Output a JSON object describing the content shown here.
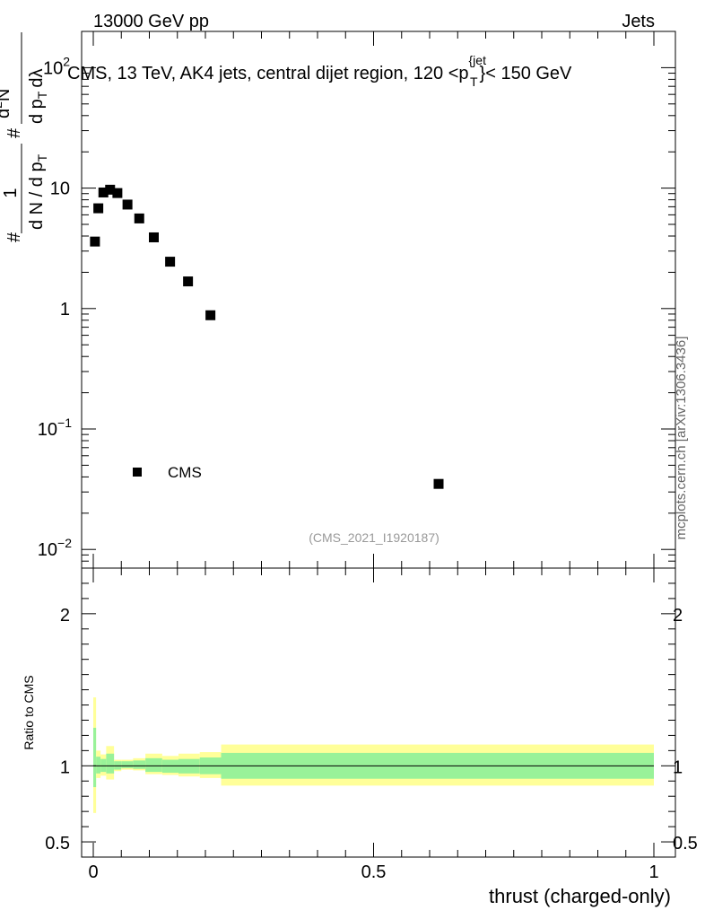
{
  "header": {
    "left": "13000 GeV pp",
    "right": "Jets"
  },
  "side_label": "mcplots.cern.ch [arXiv:1306.3436]",
  "chart_data": [
    {
      "type": "scatter",
      "title": "CMS, 13 TeV, AK4 jets, central dijet region, 120 <p",
      "title_sup": "{jet",
      "title_sub": "T",
      "title_tail": "}< 150 GeV",
      "yscale": "log",
      "ylim": [
        0.007,
        200
      ],
      "xlim": [
        -0.02,
        1.02
      ],
      "ylabel_parts": {
        "lead": "#",
        "frac_num": "1",
        "frac_den": "d N / d p",
        "den_sub": "T",
        "hash2": "#",
        "frac2_num": "d",
        "frac2_num_sup": "2",
        "frac2_num_tail": "N",
        "frac2_den": "d p",
        "frac2_den_sub": "T",
        "frac2_den_tail": "dλ"
      },
      "yticks": [
        {
          "value": 100,
          "base": "10",
          "exp": "2"
        },
        {
          "value": 10,
          "base": "10",
          "exp": ""
        },
        {
          "value": 1,
          "base": "1",
          "exp": ""
        },
        {
          "value": 0.1,
          "base": "10",
          "exp": "−1"
        },
        {
          "value": 0.01,
          "base": "10",
          "exp": "−2"
        }
      ],
      "series": [
        {
          "name": "CMS",
          "x": [
            0.003,
            0.009,
            0.018,
            0.03,
            0.043,
            0.061,
            0.082,
            0.108,
            0.137,
            0.169,
            0.209,
            0.616
          ],
          "y": [
            3.6,
            6.8,
            9.2,
            9.7,
            9.1,
            7.3,
            5.6,
            3.9,
            2.45,
            1.68,
            0.88,
            0.035
          ]
        }
      ],
      "legend": {
        "label": "CMS",
        "placement": "bottom-left"
      },
      "watermark": "(CMS_2021_I1920187)"
    },
    {
      "type": "area",
      "ylabel": "Ratio to CMS",
      "xlabel": "thrust (charged-only)",
      "ylim": [
        0.4,
        2.3
      ],
      "xlim": [
        -0.02,
        1.02
      ],
      "xticks": [
        {
          "value": 0,
          "label": "0"
        },
        {
          "value": 0.5,
          "label": "0.5"
        },
        {
          "value": 1,
          "label": "1"
        }
      ],
      "yticks": [
        {
          "value": 0.5,
          "label": "0.5"
        },
        {
          "value": 1,
          "label": "1"
        },
        {
          "value": 2,
          "label": "2"
        }
      ],
      "bins": [
        0,
        0.005,
        0.013,
        0.023,
        0.037,
        0.05,
        0.071,
        0.093,
        0.123,
        0.152,
        0.19,
        0.228,
        1.0
      ],
      "band_inner_low": [
        0.86,
        0.95,
        0.96,
        0.95,
        0.975,
        0.985,
        0.98,
        0.96,
        0.955,
        0.95,
        0.945,
        0.915
      ],
      "band_inner_high": [
        1.25,
        1.06,
        1.045,
        1.08,
        1.03,
        1.03,
        1.035,
        1.05,
        1.04,
        1.045,
        1.055,
        1.085
      ],
      "band_outer_low": [
        0.69,
        0.92,
        0.935,
        0.91,
        0.965,
        0.975,
        0.97,
        0.945,
        0.94,
        0.93,
        0.92,
        0.87
      ],
      "band_outer_high": [
        1.45,
        1.1,
        1.075,
        1.13,
        1.04,
        1.04,
        1.05,
        1.08,
        1.065,
        1.08,
        1.09,
        1.14
      ],
      "reference": 1.0,
      "colors": {
        "inner": "#99f299",
        "outer": "#ffff99"
      }
    }
  ]
}
